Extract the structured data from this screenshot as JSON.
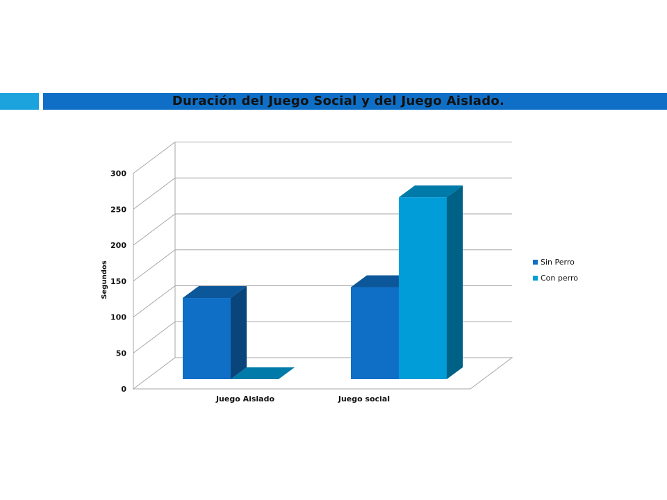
{
  "slide": {
    "title": "Duración del Juego Social y del Juego Aislado."
  },
  "chart_data": {
    "type": "bar",
    "title": "",
    "categories": [
      "Juego Aislado",
      "Juego social"
    ],
    "series": [
      {
        "name": "Sin Perro",
        "values": [
          113,
          128
        ],
        "color": "#0F6FC6"
      },
      {
        "name": "Con perro",
        "values": [
          0,
          253
        ],
        "color": "#009DD9"
      }
    ],
    "ylabel": "Segundos",
    "ylim": [
      0,
      300
    ],
    "yticks": [
      0,
      50,
      100,
      150,
      200,
      250,
      300
    ],
    "grid": true,
    "legend_position": "right",
    "three_d": true
  }
}
